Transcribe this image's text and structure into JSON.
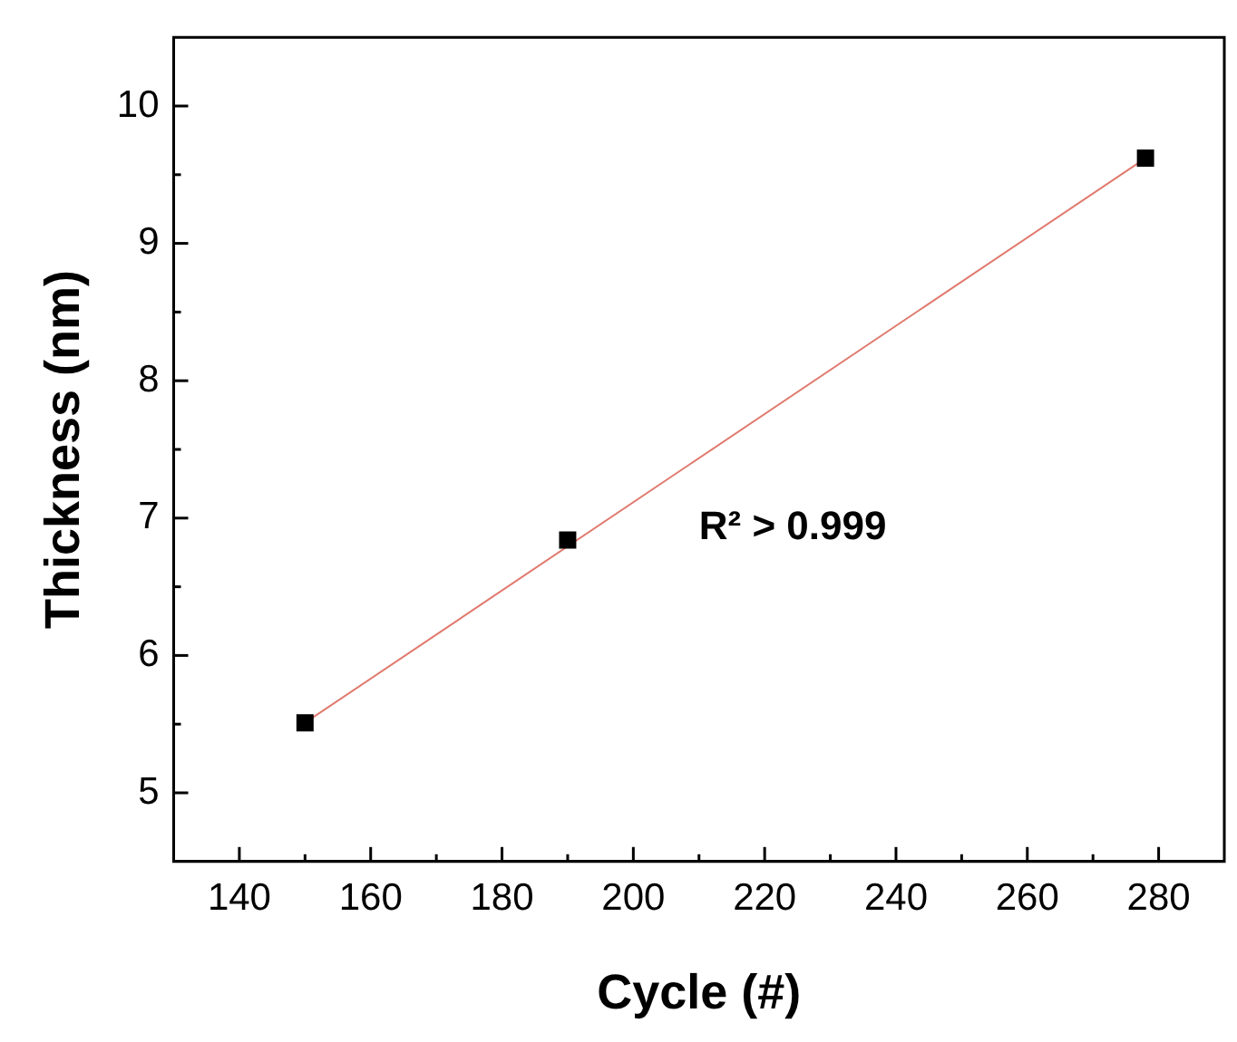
{
  "chart_data": {
    "type": "scatter",
    "xlabel": "Cycle (#)",
    "ylabel": "Thickness (nm)",
    "x": [
      150,
      190,
      278
    ],
    "series": [
      {
        "color": "#000000",
        "values": [
          5.51,
          6.84,
          9.62
        ],
        "marker": "square"
      },
      {
        "type": "line",
        "color": "#e07a6e",
        "x": [
          150,
          278
        ],
        "values": [
          5.51,
          9.62
        ],
        "marker": "none"
      }
    ],
    "xlim": [
      130,
      290
    ],
    "xticks": [
      140,
      {
        "value": 150,
        "label": null
      },
      160,
      {
        "value": 170,
        "label": null
      },
      180,
      {
        "value": 190,
        "label": null
      },
      200,
      {
        "value": 210,
        "label": null
      },
      220,
      {
        "value": 230,
        "label": null
      },
      240,
      {
        "value": 250,
        "label": null
      },
      260,
      {
        "value": 270,
        "label": null
      },
      280
    ],
    "ylim": [
      4.5,
      10.5
    ],
    "yticks": [
      5,
      {
        "value": 5.5,
        "label": null
      },
      6,
      {
        "value": 6.5,
        "label": null
      },
      7,
      {
        "value": 7.5,
        "label": null
      },
      8,
      {
        "value": 8.5,
        "label": null
      },
      9,
      {
        "value": 9.5,
        "label": null
      },
      10
    ],
    "annotations": [
      "R² > 0.999"
    ],
    "grid": false,
    "legend": false
  }
}
